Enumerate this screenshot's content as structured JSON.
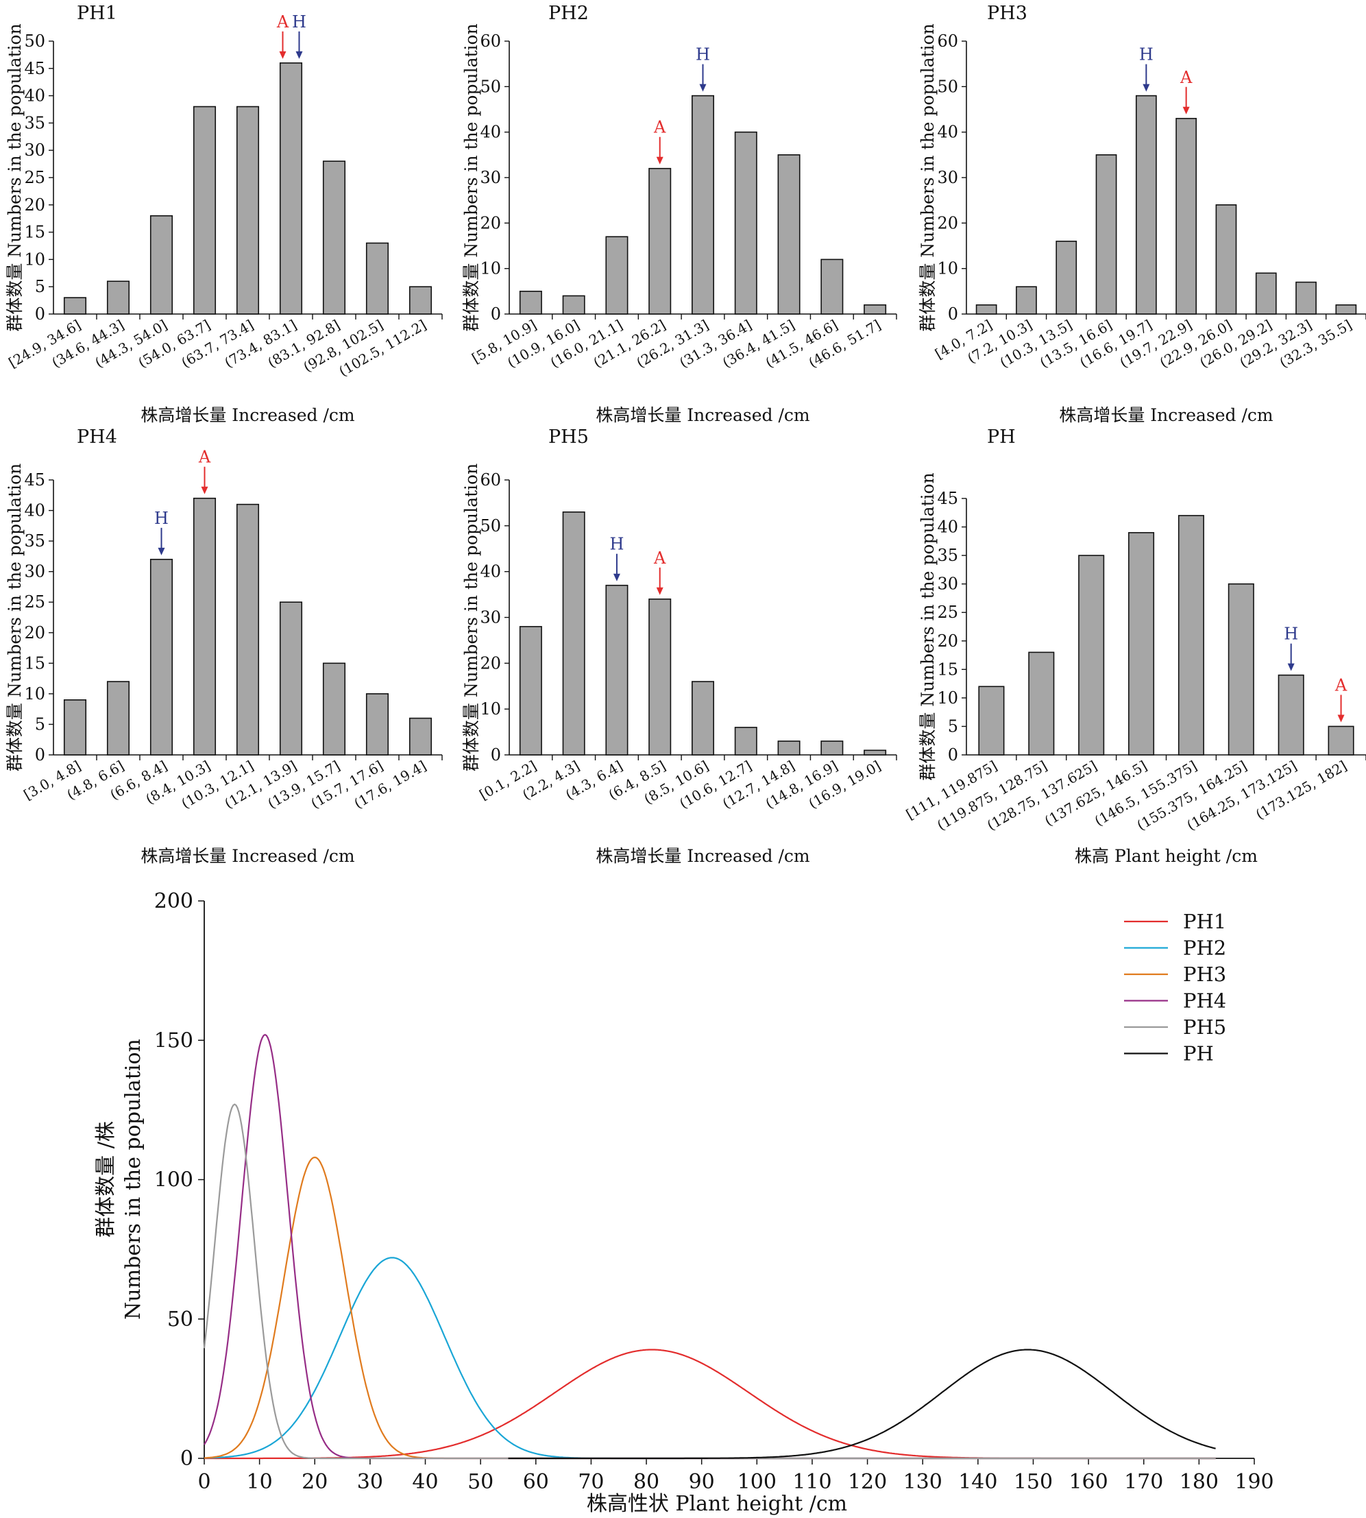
{
  "colors": {
    "bar_fill": "#a6a6a6",
    "bar_stroke": "#111111",
    "marker_A": "#e32d2d",
    "marker_H": "#2e3a8c"
  },
  "panels": [
    {
      "title": "PH1",
      "xlabel": "株高增长量 Increased /cm",
      "ylabel": "群体数量 Numbers in the population",
      "ylim": [
        0,
        50
      ],
      "yticks": [
        "0",
        "5",
        "10",
        "15",
        "20",
        "25",
        "30",
        "35",
        "40",
        "45",
        "50"
      ],
      "categories": [
        "[24.9, 34.6]",
        "(34.6, 44.3]",
        "(44.3, 54.0]",
        "(54.0, 63.7]",
        "(63.7, 73.4]",
        "(73.4, 83.1]",
        "(83.1, 92.8]",
        "(92.8, 102.5]",
        "(102.5, 112.2]"
      ],
      "values": [
        3,
        6,
        18,
        38,
        38,
        46,
        28,
        13,
        5
      ],
      "markers": [
        {
          "label": "A",
          "category_index": 5,
          "color": "marker_A"
        },
        {
          "label": "H",
          "category_index": 5,
          "color": "marker_H"
        }
      ]
    },
    {
      "title": "PH2",
      "xlabel": "株高增长量 Increased /cm",
      "ylabel": "群体数量 Numbers in the population",
      "ylim": [
        0,
        60
      ],
      "yticks": [
        "0",
        "10",
        "20",
        "30",
        "40",
        "50",
        "60"
      ],
      "categories": [
        "[5.8, 10.9]",
        "(10.9, 16.0]",
        "(16.0, 21.1]",
        "(21.1, 26.2]",
        "(26.2, 31.3]",
        "(31.3, 36.4]",
        "(36.4, 41.5]",
        "(41.5, 46.6]",
        "(46.6, 51.7]"
      ],
      "values": [
        5,
        4,
        17,
        32,
        48,
        40,
        35,
        12,
        2
      ],
      "markers": [
        {
          "label": "A",
          "category_index": 3,
          "color": "marker_A"
        },
        {
          "label": "H",
          "category_index": 4,
          "color": "marker_H"
        }
      ]
    },
    {
      "title": "PH3",
      "xlabel": "株高增长量 Increased /cm",
      "ylabel": "群体数量 Numbers in the population",
      "ylim": [
        0,
        60
      ],
      "yticks": [
        "0",
        "10",
        "20",
        "30",
        "40",
        "50",
        "60"
      ],
      "categories": [
        "[4.0, 7.2]",
        "(7.2, 10.3]",
        "(10.3, 13.5]",
        "(13.5, 16.6]",
        "(16.6, 19.7]",
        "(19.7, 22.9]",
        "(22.9, 26.0]",
        "(26.0, 29.2]",
        "(29.2, 32.3]",
        "(32.3, 35.5]"
      ],
      "values": [
        2,
        6,
        16,
        35,
        48,
        43,
        24,
        9,
        7,
        2
      ],
      "markers": [
        {
          "label": "H",
          "category_index": 4,
          "color": "marker_H"
        },
        {
          "label": "A",
          "category_index": 5,
          "color": "marker_A"
        }
      ]
    },
    {
      "title": "PH4",
      "xlabel": "株高增长量 Increased /cm",
      "ylabel": "群体数量 Numbers in the population",
      "ylim": [
        0,
        45
      ],
      "yticks": [
        "0",
        "5",
        "10",
        "15",
        "20",
        "25",
        "30",
        "35",
        "40",
        "45"
      ],
      "categories": [
        "[3.0, 4.8]",
        "(4.8, 6.6]",
        "(6.6, 8.4]",
        "(8.4, 10.3]",
        "(10.3, 12.1]",
        "(12.1, 13.9]",
        "(13.9, 15.7]",
        "(15.7, 17.6]",
        "(17.6, 19.4]"
      ],
      "values": [
        9,
        12,
        32,
        42,
        41,
        25,
        15,
        10,
        6
      ],
      "markers": [
        {
          "label": "H",
          "category_index": 2,
          "color": "marker_H"
        },
        {
          "label": "A",
          "category_index": 3,
          "color": "marker_A"
        }
      ]
    },
    {
      "title": "PH5",
      "xlabel": "株高增长量 Increased /cm",
      "ylabel": "群体数量 Numbers in the population",
      "ylim": [
        0,
        60
      ],
      "yticks": [
        "0",
        "10",
        "20",
        "30",
        "40",
        "50",
        "60"
      ],
      "categories": [
        "[0.1, 2.2]",
        "(2.2, 4.3]",
        "(4.3, 6.4]",
        "(6.4, 8.5]",
        "(8.5, 10.6]",
        "(10.6, 12.7]",
        "(12.7, 14.8]",
        "(14.8, 16.9]",
        "(16.9, 19.0]"
      ],
      "values": [
        28,
        53,
        37,
        34,
        16,
        6,
        3,
        3,
        1
      ],
      "markers": [
        {
          "label": "H",
          "category_index": 2,
          "color": "marker_H"
        },
        {
          "label": "A",
          "category_index": 3,
          "color": "marker_A"
        }
      ]
    },
    {
      "title": "PH",
      "xlabel": "株高 Plant height /cm",
      "ylabel": "群体数量 Numbers in the population",
      "ylim": [
        0,
        45
      ],
      "yticks": [
        "0",
        "5",
        "10",
        "15",
        "20",
        "25",
        "30",
        "35",
        "40",
        "45"
      ],
      "categories": [
        "[111, 119.875]",
        "(119.875, 128.75]",
        "(128.75, 137.625]",
        "(137.625, 146.5]",
        "(146.5, 155.375]",
        "(155.375, 164.25]",
        "(164.25, 173.125]",
        "(173.125, 182]"
      ],
      "values": [
        12,
        18,
        35,
        39,
        42,
        30,
        14,
        5
      ],
      "markers": [
        {
          "label": "H",
          "category_index": 6,
          "color": "marker_H"
        },
        {
          "label": "A",
          "category_index": 7,
          "color": "marker_A"
        }
      ]
    }
  ],
  "chart_data": [
    {
      "type": "bar",
      "title": "PH1",
      "categories": [
        "[24.9, 34.6]",
        "(34.6, 44.3]",
        "(44.3, 54.0]",
        "(54.0, 63.7]",
        "(63.7, 73.4]",
        "(73.4, 83.1]",
        "(83.1, 92.8]",
        "(92.8, 102.5]",
        "(102.5, 112.2]"
      ],
      "values": [
        3,
        6,
        18,
        38,
        38,
        46,
        28,
        13,
        5
      ],
      "xlabel": "株高增长量 Increased /cm",
      "ylabel": "群体数量 Numbers in the population",
      "ylim": [
        0,
        50
      ]
    },
    {
      "type": "bar",
      "title": "PH2",
      "categories": [
        "[5.8, 10.9]",
        "(10.9, 16.0]",
        "(16.0, 21.1]",
        "(21.1, 26.2]",
        "(26.2, 31.3]",
        "(31.3, 36.4]",
        "(36.4, 41.5]",
        "(41.5, 46.6]",
        "(46.6, 51.7]"
      ],
      "values": [
        5,
        4,
        17,
        32,
        48,
        40,
        35,
        12,
        2
      ],
      "xlabel": "株高增长量 Increased /cm",
      "ylabel": "群体数量 Numbers in the population",
      "ylim": [
        0,
        60
      ]
    },
    {
      "type": "bar",
      "title": "PH3",
      "categories": [
        "[4.0, 7.2]",
        "(7.2, 10.3]",
        "(10.3, 13.5]",
        "(13.5, 16.6]",
        "(16.6, 19.7]",
        "(19.7, 22.9]",
        "(22.9, 26.0]",
        "(26.0, 29.2]",
        "(29.2, 32.3]",
        "(32.3, 35.5]"
      ],
      "values": [
        2,
        6,
        16,
        35,
        48,
        43,
        24,
        9,
        7,
        2
      ],
      "xlabel": "株高增长量 Increased /cm",
      "ylabel": "群体数量 Numbers in the population",
      "ylim": [
        0,
        60
      ]
    },
    {
      "type": "bar",
      "title": "PH4",
      "categories": [
        "[3.0, 4.8]",
        "(4.8, 6.6]",
        "(6.6, 8.4]",
        "(8.4, 10.3]",
        "(10.3, 12.1]",
        "(12.1, 13.9]",
        "(13.9, 15.7]",
        "(15.7, 17.6]",
        "(17.6, 19.4]"
      ],
      "values": [
        9,
        12,
        32,
        42,
        41,
        25,
        15,
        10,
        6
      ],
      "xlabel": "株高增长量 Increased /cm",
      "ylabel": "群体数量 Numbers in the population",
      "ylim": [
        0,
        45
      ]
    },
    {
      "type": "bar",
      "title": "PH5",
      "categories": [
        "[0.1, 2.2]",
        "(2.2, 4.3]",
        "(4.3, 6.4]",
        "(6.4, 8.5]",
        "(8.5, 10.6]",
        "(10.6, 12.7]",
        "(12.7, 14.8]",
        "(14.8, 16.9]",
        "(16.9, 19.0]"
      ],
      "values": [
        28,
        53,
        37,
        34,
        16,
        6,
        3,
        3,
        1
      ],
      "xlabel": "株高增长量 Increased /cm",
      "ylabel": "群体数量 Numbers in the population",
      "ylim": [
        0,
        60
      ]
    },
    {
      "type": "bar",
      "title": "PH",
      "categories": [
        "[111, 119.875]",
        "(119.875, 128.75]",
        "(128.75, 137.625]",
        "(137.625, 146.5]",
        "(146.5, 155.375]",
        "(155.375, 164.25]",
        "(164.25, 173.125]",
        "(173.125, 182]"
      ],
      "values": [
        12,
        18,
        35,
        39,
        42,
        30,
        14,
        5
      ],
      "xlabel": "株高 Plant height /cm",
      "ylabel": "群体数量 Numbers in the population",
      "ylim": [
        0,
        45
      ]
    },
    {
      "type": "line",
      "xlabel": "株高性状 Plant height /cm",
      "ylabel": [
        "群体数量 /株",
        "Numbers in the population"
      ],
      "xlim": [
        0,
        190
      ],
      "ylim": [
        0,
        200
      ],
      "xticks": [
        "0",
        "10",
        "20",
        "30",
        "40",
        "50",
        "60",
        "70",
        "80",
        "90",
        "100",
        "110",
        "120",
        "130",
        "140",
        "150",
        "160",
        "170",
        "180",
        "190"
      ],
      "yticks": [
        "0",
        "50",
        "100",
        "150",
        "200"
      ],
      "legend_position": "top-right",
      "series": [
        {
          "name": "PH1",
          "color": "#e32d2d",
          "x_range": [
            0,
            183
          ],
          "mean": 81,
          "sd": 17.5,
          "peak": 39
        },
        {
          "name": "PH2",
          "color": "#1aa6d6",
          "x_range": [
            0,
            183
          ],
          "mean": 34,
          "sd": 9.5,
          "peak": 72
        },
        {
          "name": "PH3",
          "color": "#e07b1e",
          "x_range": [
            0,
            183
          ],
          "mean": 20,
          "sd": 5.5,
          "peak": 108
        },
        {
          "name": "PH4",
          "color": "#962d86",
          "x_range": [
            0,
            183
          ],
          "mean": 11,
          "sd": 4.2,
          "peak": 152
        },
        {
          "name": "PH5",
          "color": "#9a9a9a",
          "x_range": [
            0,
            183
          ],
          "mean": 5.5,
          "sd": 3.6,
          "peak": 127
        },
        {
          "name": "PH",
          "color": "#111111",
          "x_range": [
            55,
            183
          ],
          "mean": 149,
          "sd": 15.5,
          "peak": 39
        }
      ]
    }
  ]
}
